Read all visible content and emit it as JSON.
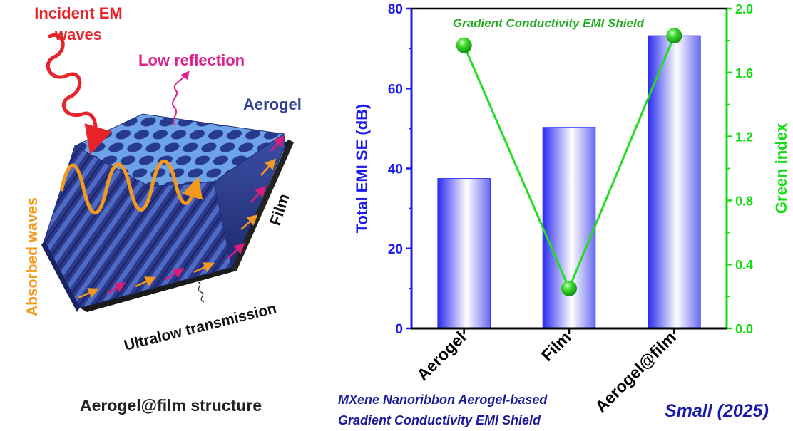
{
  "figure": {
    "structure_label": "Aerogel@film structure",
    "caption_line1": "MXene Nanoribbon Aerogel-based",
    "caption_line2": "Gradient Conductivity EMI Shield",
    "journal": "Small (2025)"
  },
  "schematic": {
    "incident_line1": "Incident EM",
    "incident_line2": "waves",
    "low_reflection": "Low reflection",
    "aerogel": "Aerogel",
    "absorbed": "Absorbed waves",
    "film": "Film",
    "transmission": "Ultralow transmission",
    "colors": {
      "incident": "#e8242a",
      "reflection": "#e0208c",
      "absorbed": "#f39a1e",
      "aerogel": "#2f3f8f"
    }
  },
  "chart_data": {
    "type": "bar",
    "title": "Gradient Conductivity EMI Shield",
    "categories": [
      "Aerogel",
      "Film",
      "Aerogel@film"
    ],
    "series": [
      {
        "axis": "left",
        "type": "bar",
        "values": [
          37.5,
          50.3,
          73.2
        ],
        "color": "#2222ee"
      },
      {
        "axis": "right",
        "type": "line",
        "values": [
          1.77,
          0.25,
          1.83
        ],
        "color": "#22dd22"
      }
    ],
    "ylabel": "Total EMI SE (dB)",
    "ylim": [
      0,
      80
    ],
    "yticks": [
      "0",
      "20",
      "40",
      "60",
      "80"
    ],
    "y2label": "Green index",
    "y2lim": [
      0,
      2.0
    ],
    "y2ticks": [
      "0.0",
      "0.4",
      "0.8",
      "1.2",
      "1.6",
      "2.0"
    ],
    "grid": false,
    "axis_colors": {
      "left": "#1a1af0",
      "right": "#11dd11"
    }
  }
}
